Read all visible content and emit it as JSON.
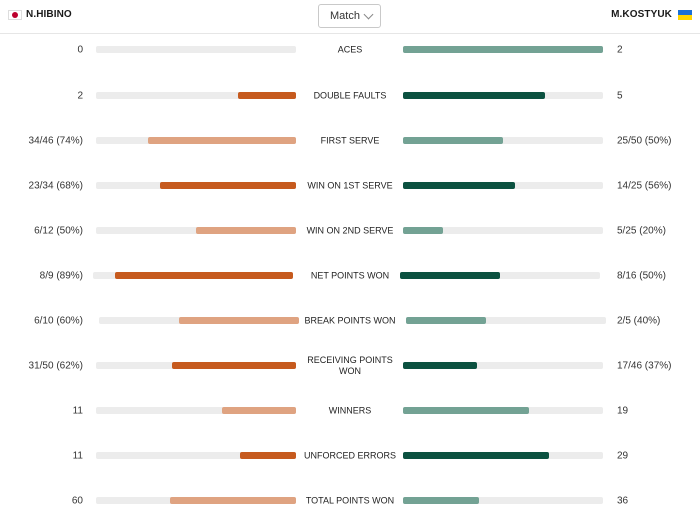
{
  "header": {
    "player_left": "N.HIBINO",
    "player_right": "M.KOSTYUK",
    "flag_left": "japan-flag",
    "flag_right": "ukraine-flag",
    "filter_value": "Match"
  },
  "colors": {
    "left_dark": "#c65a1e",
    "left_light": "#dfa381",
    "right_dark": "#0b5140",
    "right_light": "#73a294",
    "track": "#ececec"
  },
  "stats": [
    {
      "label": "ACES",
      "left": "0",
      "right": "2",
      "left_frac": 0.0,
      "right_frac": 1.0,
      "winner": "right"
    },
    {
      "label": "DOUBLE FAULTS",
      "left": "2",
      "right": "5",
      "left_frac": 0.29,
      "right_frac": 0.71,
      "winner": "left"
    },
    {
      "label": "FIRST SERVE",
      "left": "34/46 (74%)",
      "right": "25/50 (50%)",
      "left_frac": 0.74,
      "right_frac": 0.5,
      "winner": "left"
    },
    {
      "label": "WIN ON 1ST SERVE",
      "left": "23/34 (68%)",
      "right": "14/25 (56%)",
      "left_frac": 0.68,
      "right_frac": 0.56,
      "winner": "left"
    },
    {
      "label": "WIN ON 2ND SERVE",
      "left": "6/12 (50%)",
      "right": "5/25 (20%)",
      "left_frac": 0.5,
      "right_frac": 0.2,
      "winner": "left"
    },
    {
      "label": "NET POINTS WON",
      "left": "8/9 (89%)",
      "right": "8/16 (50%)",
      "left_frac": 0.89,
      "right_frac": 0.5,
      "winner": "left"
    },
    {
      "label": "BREAK POINTS WON",
      "left": "6/10 (60%)",
      "right": "2/5 (40%)",
      "left_frac": 0.6,
      "right_frac": 0.4,
      "winner": "left"
    },
    {
      "label": "RECEIVING POINTS WON",
      "left": "31/50 (62%)",
      "right": "17/46 (37%)",
      "left_frac": 0.62,
      "right_frac": 0.37,
      "winner": "left"
    },
    {
      "label": "WINNERS",
      "left": "11",
      "right": "19",
      "left_frac": 0.37,
      "right_frac": 0.63,
      "winner": "right"
    },
    {
      "label": "UNFORCED ERRORS",
      "left": "11",
      "right": "29",
      "left_frac": 0.28,
      "right_frac": 0.73,
      "winner": "left"
    },
    {
      "label": "TOTAL POINTS WON",
      "left": "60",
      "right": "36",
      "left_frac": 0.63,
      "right_frac": 0.38,
      "winner": "left"
    }
  ]
}
